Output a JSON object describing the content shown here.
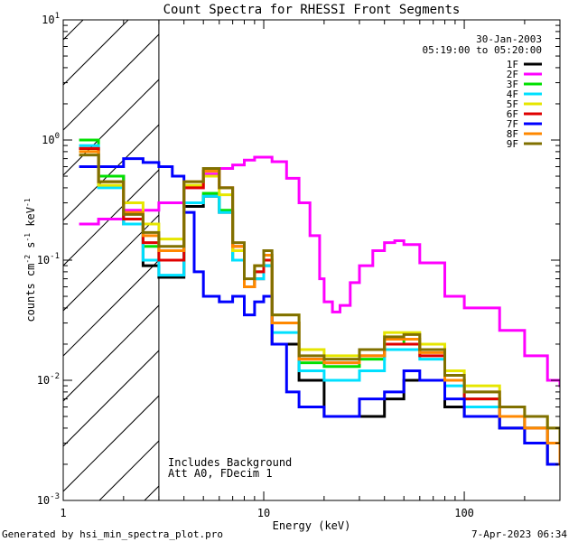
{
  "chart_data": {
    "type": "line",
    "title": "Count Spectra for RHESSI Front Segments",
    "xlabel": "Energy (keV)",
    "ylabel": "counts cm-2 s-1 keV-1",
    "xscale": "log",
    "yscale": "log",
    "xlim": [
      1,
      300
    ],
    "ylim": [
      0.001,
      10
    ],
    "x_tick_labels": [
      {
        "value": 1,
        "label": "1"
      },
      {
        "value": 10,
        "label": "10"
      },
      {
        "value": 100,
        "label": "100"
      }
    ],
    "y_tick_labels": [
      {
        "value": 0.001,
        "base": "10",
        "exp": "-3"
      },
      {
        "value": 0.01,
        "base": "10",
        "exp": "-2"
      },
      {
        "value": 0.1,
        "base": "10",
        "exp": "-1"
      },
      {
        "value": 1,
        "base": "10",
        "exp": "0"
      },
      {
        "value": 10,
        "base": "10",
        "exp": "1"
      }
    ],
    "hatched_region": {
      "x_from": 1,
      "x_to": 3
    },
    "date": "30-Jan-2003",
    "time_range": "05:19:00 to 05:20:00",
    "annotations": [
      "Includes Background",
      "Att A0, FDecim 1"
    ],
    "footer_left": "Generated by hsi_min_spectra_plot.pro",
    "footer_right": "7-Apr-2023 06:34",
    "series": [
      {
        "name": "1F",
        "color": "#000000",
        "points": [
          [
            1.2,
            0.85
          ],
          [
            1.5,
            0.5
          ],
          [
            2,
            0.2
          ],
          [
            2.5,
            0.09
          ],
          [
            3,
            0.072
          ],
          [
            4,
            0.28
          ],
          [
            5,
            0.34
          ],
          [
            6,
            0.25
          ],
          [
            7,
            0.1
          ],
          [
            8,
            0.06
          ],
          [
            9,
            0.07
          ],
          [
            10,
            0.09
          ],
          [
            11,
            0.02
          ],
          [
            15,
            0.01
          ],
          [
            20,
            0.005
          ],
          [
            30,
            0.005
          ],
          [
            40,
            0.007
          ],
          [
            50,
            0.01
          ],
          [
            60,
            0.01
          ],
          [
            80,
            0.006
          ],
          [
            100,
            0.005
          ],
          [
            150,
            0.004
          ],
          [
            200,
            0.003
          ],
          [
            260,
            0.002
          ],
          [
            300,
            0.002
          ]
        ]
      },
      {
        "name": "2F",
        "color": "#ff00ff",
        "points": [
          [
            1.2,
            0.2
          ],
          [
            1.5,
            0.22
          ],
          [
            2,
            0.26
          ],
          [
            3,
            0.3
          ],
          [
            4,
            0.4
          ],
          [
            5,
            0.52
          ],
          [
            6,
            0.58
          ],
          [
            7,
            0.62
          ],
          [
            8,
            0.68
          ],
          [
            9,
            0.72
          ],
          [
            10,
            0.72
          ],
          [
            11,
            0.66
          ],
          [
            13,
            0.48
          ],
          [
            15,
            0.3
          ],
          [
            17,
            0.16
          ],
          [
            19,
            0.07
          ],
          [
            20,
            0.045
          ],
          [
            22,
            0.037
          ],
          [
            24,
            0.042
          ],
          [
            27,
            0.065
          ],
          [
            30,
            0.09
          ],
          [
            35,
            0.12
          ],
          [
            40,
            0.14
          ],
          [
            45,
            0.145
          ],
          [
            50,
            0.135
          ],
          [
            60,
            0.095
          ],
          [
            80,
            0.05
          ],
          [
            100,
            0.04
          ],
          [
            150,
            0.026
          ],
          [
            200,
            0.016
          ],
          [
            260,
            0.01
          ],
          [
            300,
            0.009
          ]
        ]
      },
      {
        "name": "3F",
        "color": "#00e000",
        "points": [
          [
            1.2,
            1.0
          ],
          [
            1.5,
            0.5
          ],
          [
            2,
            0.22
          ],
          [
            2.5,
            0.13
          ],
          [
            3,
            0.1
          ],
          [
            4,
            0.3
          ],
          [
            5,
            0.36
          ],
          [
            6,
            0.26
          ],
          [
            7,
            0.1
          ],
          [
            8,
            0.06
          ],
          [
            9,
            0.08
          ],
          [
            10,
            0.1
          ],
          [
            11,
            0.03
          ],
          [
            15,
            0.014
          ],
          [
            20,
            0.013
          ],
          [
            30,
            0.015
          ],
          [
            40,
            0.02
          ],
          [
            50,
            0.022
          ],
          [
            60,
            0.018
          ],
          [
            80,
            0.01
          ],
          [
            100,
            0.007
          ],
          [
            150,
            0.005
          ],
          [
            200,
            0.004
          ],
          [
            260,
            0.003
          ],
          [
            300,
            0.002
          ]
        ]
      },
      {
        "name": "4F",
        "color": "#00e0ff",
        "points": [
          [
            1.2,
            0.9
          ],
          [
            1.5,
            0.4
          ],
          [
            2,
            0.2
          ],
          [
            2.5,
            0.1
          ],
          [
            3,
            0.075
          ],
          [
            4,
            0.3
          ],
          [
            5,
            0.34
          ],
          [
            6,
            0.25
          ],
          [
            7,
            0.1
          ],
          [
            8,
            0.06
          ],
          [
            9,
            0.07
          ],
          [
            10,
            0.09
          ],
          [
            11,
            0.025
          ],
          [
            15,
            0.012
          ],
          [
            20,
            0.01
          ],
          [
            30,
            0.012
          ],
          [
            40,
            0.018
          ],
          [
            50,
            0.018
          ],
          [
            60,
            0.015
          ],
          [
            80,
            0.009
          ],
          [
            100,
            0.006
          ],
          [
            150,
            0.005
          ],
          [
            200,
            0.004
          ],
          [
            260,
            0.003
          ],
          [
            300,
            0.002
          ]
        ]
      },
      {
        "name": "5F",
        "color": "#e6e600",
        "points": [
          [
            1.2,
            0.8
          ],
          [
            1.5,
            0.42
          ],
          [
            2,
            0.3
          ],
          [
            2.5,
            0.2
          ],
          [
            3,
            0.15
          ],
          [
            4,
            0.42
          ],
          [
            5,
            0.5
          ],
          [
            6,
            0.35
          ],
          [
            7,
            0.12
          ],
          [
            8,
            0.06
          ],
          [
            9,
            0.09
          ],
          [
            10,
            0.11
          ],
          [
            11,
            0.035
          ],
          [
            15,
            0.018
          ],
          [
            20,
            0.016
          ],
          [
            30,
            0.018
          ],
          [
            40,
            0.025
          ],
          [
            50,
            0.025
          ],
          [
            60,
            0.02
          ],
          [
            80,
            0.012
          ],
          [
            100,
            0.009
          ],
          [
            150,
            0.006
          ],
          [
            200,
            0.005
          ],
          [
            260,
            0.004
          ],
          [
            300,
            0.003
          ]
        ]
      },
      {
        "name": "6F",
        "color": "#e00000",
        "points": [
          [
            1.2,
            0.85
          ],
          [
            1.5,
            0.45
          ],
          [
            2,
            0.22
          ],
          [
            2.5,
            0.14
          ],
          [
            3,
            0.1
          ],
          [
            4,
            0.4
          ],
          [
            5,
            0.55
          ],
          [
            6,
            0.4
          ],
          [
            7,
            0.13
          ],
          [
            8,
            0.06
          ],
          [
            9,
            0.08
          ],
          [
            10,
            0.1
          ],
          [
            11,
            0.03
          ],
          [
            15,
            0.015
          ],
          [
            20,
            0.014
          ],
          [
            30,
            0.016
          ],
          [
            40,
            0.02
          ],
          [
            50,
            0.02
          ],
          [
            60,
            0.016
          ],
          [
            80,
            0.01
          ],
          [
            100,
            0.007
          ],
          [
            150,
            0.005
          ],
          [
            200,
            0.004
          ],
          [
            260,
            0.003
          ],
          [
            300,
            0.002
          ]
        ]
      },
      {
        "name": "7F",
        "color": "#0000ff",
        "points": [
          [
            1.2,
            0.6
          ],
          [
            1.5,
            0.6
          ],
          [
            2,
            0.7
          ],
          [
            2.5,
            0.65
          ],
          [
            3,
            0.6
          ],
          [
            3.5,
            0.5
          ],
          [
            4,
            0.25
          ],
          [
            4.5,
            0.08
          ],
          [
            5,
            0.05
          ],
          [
            6,
            0.045
          ],
          [
            7,
            0.05
          ],
          [
            8,
            0.035
          ],
          [
            9,
            0.045
          ],
          [
            10,
            0.05
          ],
          [
            11,
            0.02
          ],
          [
            13,
            0.008
          ],
          [
            15,
            0.006
          ],
          [
            20,
            0.005
          ],
          [
            30,
            0.007
          ],
          [
            40,
            0.008
          ],
          [
            50,
            0.012
          ],
          [
            60,
            0.01
          ],
          [
            80,
            0.007
          ],
          [
            100,
            0.005
          ],
          [
            150,
            0.004
          ],
          [
            200,
            0.003
          ],
          [
            260,
            0.002
          ],
          [
            300,
            0.002
          ]
        ]
      },
      {
        "name": "8F",
        "color": "#ff8800",
        "points": [
          [
            1.2,
            0.8
          ],
          [
            1.5,
            0.45
          ],
          [
            2,
            0.25
          ],
          [
            2.5,
            0.16
          ],
          [
            3,
            0.12
          ],
          [
            4,
            0.45
          ],
          [
            5,
            0.55
          ],
          [
            6,
            0.4
          ],
          [
            7,
            0.13
          ],
          [
            8,
            0.06
          ],
          [
            9,
            0.09
          ],
          [
            10,
            0.11
          ],
          [
            11,
            0.03
          ],
          [
            15,
            0.015
          ],
          [
            20,
            0.014
          ],
          [
            30,
            0.016
          ],
          [
            40,
            0.022
          ],
          [
            50,
            0.022
          ],
          [
            60,
            0.017
          ],
          [
            80,
            0.01
          ],
          [
            100,
            0.008
          ],
          [
            150,
            0.005
          ],
          [
            200,
            0.004
          ],
          [
            260,
            0.003
          ],
          [
            300,
            0.002
          ]
        ]
      },
      {
        "name": "9F",
        "color": "#807000",
        "points": [
          [
            1.2,
            0.75
          ],
          [
            1.5,
            0.45
          ],
          [
            2,
            0.24
          ],
          [
            2.5,
            0.17
          ],
          [
            3,
            0.13
          ],
          [
            4,
            0.45
          ],
          [
            5,
            0.58
          ],
          [
            6,
            0.4
          ],
          [
            7,
            0.14
          ],
          [
            8,
            0.07
          ],
          [
            9,
            0.09
          ],
          [
            10,
            0.12
          ],
          [
            11,
            0.035
          ],
          [
            15,
            0.016
          ],
          [
            20,
            0.015
          ],
          [
            30,
            0.018
          ],
          [
            40,
            0.023
          ],
          [
            50,
            0.024
          ],
          [
            60,
            0.018
          ],
          [
            80,
            0.011
          ],
          [
            100,
            0.008
          ],
          [
            150,
            0.006
          ],
          [
            200,
            0.005
          ],
          [
            260,
            0.004
          ],
          [
            300,
            0.003
          ]
        ]
      }
    ]
  }
}
